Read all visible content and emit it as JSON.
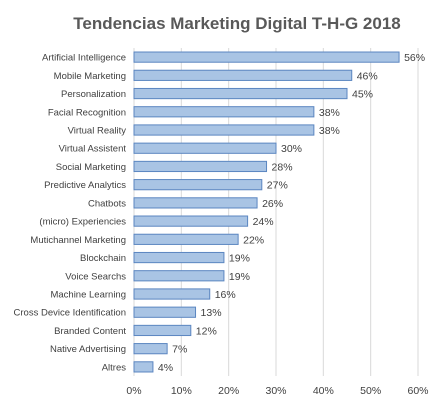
{
  "chart_data": {
    "type": "bar",
    "orientation": "horizontal",
    "title": "Tendencias Marketing Digital T-H-G 2018",
    "categories": [
      "Artificial Intelligence",
      "Mobile Marketing",
      "Personalization",
      "Facial Recognition",
      "Virtual Reality",
      "Virtual Assistent",
      "Social Marketing",
      "Predictive Analytics",
      "Chatbots",
      "(micro) Experiencies",
      "Mutichannel Marketing",
      "Blockchain",
      "Voice Searchs",
      "Machine Learning",
      "Cross Device Identification",
      "Branded Content",
      "Native Advertising",
      "Altres"
    ],
    "values": [
      56,
      46,
      45,
      38,
      38,
      30,
      28,
      27,
      26,
      24,
      22,
      19,
      19,
      16,
      13,
      12,
      7,
      4
    ],
    "data_labels": [
      "56%",
      "46%",
      "45%",
      "38%",
      "38%",
      "30%",
      "28%",
      "27%",
      "26%",
      "24%",
      "22%",
      "19%",
      "19%",
      "16%",
      "13%",
      "12%",
      "7%",
      "4%"
    ],
    "x_ticks": [
      "0%",
      "10%",
      "20%",
      "30%",
      "40%",
      "50%",
      "60%"
    ],
    "xlim": [
      0,
      60
    ],
    "xlabel": "",
    "ylabel": "",
    "grid": true,
    "legend": "none",
    "colors": {
      "bar_fill": "#a9c4e4",
      "bar_stroke": "#5b86c0",
      "grid": "#d9d9d9",
      "title": "#595959",
      "text": "#404040"
    }
  }
}
